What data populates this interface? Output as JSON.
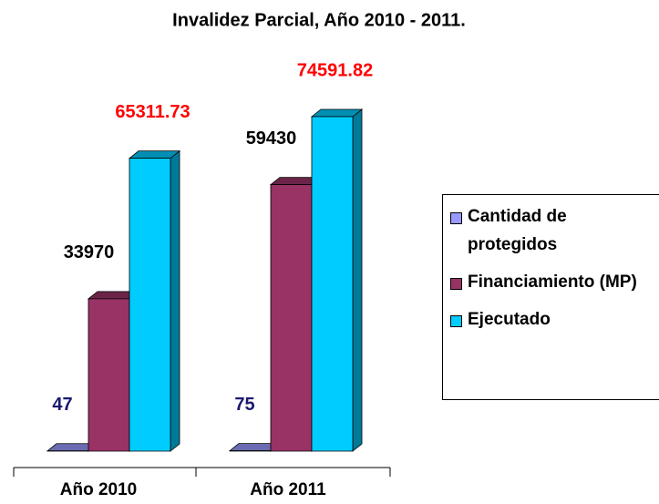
{
  "chart_data": {
    "type": "bar3d",
    "title": "Invalidez Parcial, Año 2010 -  2011.",
    "categories": [
      "Año 2010",
      "Año 2011"
    ],
    "series": [
      {
        "name": "Cantidad de protegidos",
        "color": "#9999ff",
        "label_color": "#1a1a6e",
        "values": [
          47,
          75
        ]
      },
      {
        "name": "Financiamiento (MP)",
        "color": "#993366",
        "label_color": "#000000",
        "values": [
          33970,
          59430
        ]
      },
      {
        "name": "Ejecutado",
        "color": "#00ccff",
        "label_color": "#ff0000",
        "values": [
          65311.73,
          74591.82
        ]
      }
    ],
    "legend": "right"
  }
}
